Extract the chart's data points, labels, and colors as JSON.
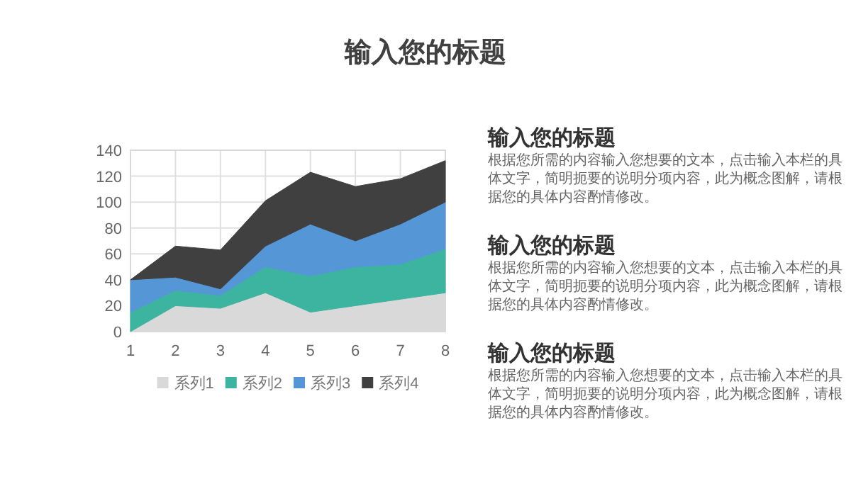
{
  "chart_data": [
    {
      "type": "area",
      "title": "输入您的标题",
      "stacked": true,
      "x": [
        1,
        2,
        3,
        4,
        5,
        6,
        7,
        8
      ],
      "xlim": [
        1,
        8
      ],
      "xticks": [
        1,
        2,
        3,
        4,
        5,
        6,
        7,
        8
      ],
      "ylim": [
        0,
        140
      ],
      "yticks": [
        0,
        20,
        40,
        60,
        80,
        100,
        120,
        140
      ],
      "grid": true,
      "legend": "bottom",
      "series": [
        {
          "name": "系列1",
          "color": "#d9d9d9",
          "values": [
            0,
            20,
            18,
            30,
            15,
            20,
            25,
            30
          ]
        },
        {
          "name": "系列2",
          "color": "#3cb4a0",
          "values": [
            15,
            12,
            10,
            20,
            28,
            30,
            27,
            34
          ]
        },
        {
          "name": "系列3",
          "color": "#5596d6",
          "values": [
            25,
            10,
            5,
            16,
            40,
            20,
            31,
            36
          ]
        },
        {
          "name": "系列4",
          "color": "#404040",
          "values": [
            0,
            24,
            30,
            35,
            40,
            42,
            35,
            32
          ]
        }
      ]
    },
    {
      "type": "other",
      "annotations": [
        "输入您的标题",
        "根据您所需的内容输入您想要的文本，点击输入本栏的具体文字，简明扼要的说明分项内容，此为概念图解，请根据您的具体内容酌情修改。",
        "输入您的标题",
        "根据您所需的内容输入您想要的文本，点击输入本栏的具体文字，简明扼要的说明分项内容，此为概念图解，请根据您的具体内容酌情修改。",
        "输入您的标题",
        "根据您所需的内容输入您想要的文本，点击输入本栏的具体文字，简明扼要的说明分项内容，此为概念图解，请根据您的具体内容酌情修改。"
      ]
    }
  ]
}
